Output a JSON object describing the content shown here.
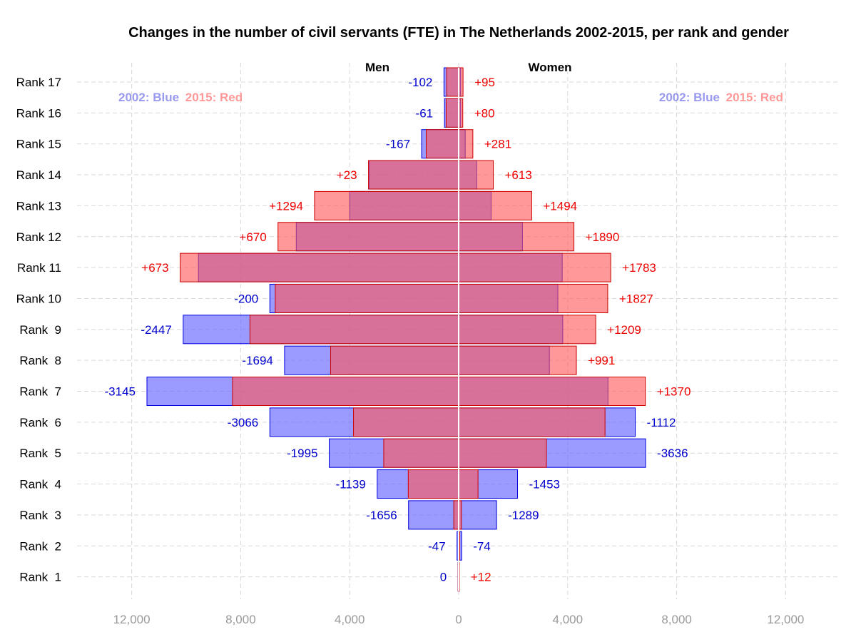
{
  "chart_data": {
    "type": "bar",
    "title": "Changes in the number of civil servants (FTE) in The Netherlands 2002-2015, per rank and gender",
    "men_label": "Men",
    "women_label": "Women",
    "legend": {
      "left": {
        "blue_text": "2002: Blue",
        "red_text": "2015: Red"
      },
      "right": {
        "blue_text": "2002: Blue",
        "red_text": "2015: Red"
      }
    },
    "colors": {
      "blue_fill": "#6666ff",
      "blue_stroke": "#0000dd",
      "red_fill": "#ff5555",
      "red_stroke": "#cc0000",
      "label_blue": "#0000cc",
      "label_red": "#ee0000",
      "legend_blue": "#9999ee",
      "legend_red": "#ff9999"
    },
    "x_ticks": [
      "12,000",
      "8,000",
      "4,000",
      "0",
      "4,000",
      "8,000",
      "12,000"
    ],
    "x_tick_values": [
      -12000,
      -8000,
      -4000,
      0,
      4000,
      8000,
      12000
    ],
    "xlim": [
      -13000,
      13000
    ],
    "categories": [
      "Rank 17",
      "Rank 16",
      "Rank 15",
      "Rank 14",
      "Rank 13",
      "Rank 12",
      "Rank 11",
      "Rank 10",
      "Rank  9",
      "Rank  8",
      "Rank  7",
      "Rank  6",
      "Rank  5",
      "Rank  4",
      "Rank  3",
      "Rank  2",
      "Rank  1"
    ],
    "series": [
      {
        "name": "Men 2002",
        "values": [
          540,
          520,
          1360,
          3290,
          4000,
          5960,
          9550,
          6930,
          10110,
          6390,
          11440,
          6930,
          4750,
          2990,
          1840,
          60,
          20
        ]
      },
      {
        "name": "Men 2015",
        "values": [
          440,
          460,
          1190,
          3310,
          5290,
          6630,
          10220,
          6730,
          7660,
          4700,
          8300,
          3860,
          2750,
          1850,
          180,
          10,
          20
        ]
      },
      {
        "name": "Women 2002",
        "values": [
          70,
          70,
          240,
          660,
          1190,
          2340,
          3800,
          3640,
          3820,
          3330,
          5480,
          6480,
          6860,
          2160,
          1390,
          110,
          10
        ]
      },
      {
        "name": "Women 2015",
        "values": [
          160,
          150,
          520,
          1270,
          2680,
          4230,
          5580,
          5470,
          5030,
          4320,
          6850,
          5370,
          3220,
          710,
          100,
          40,
          20
        ]
      }
    ],
    "men_change_labels": [
      "-102",
      "-61",
      "-167",
      "+23",
      "+1294",
      "+670",
      "+673",
      "-200",
      "-2447",
      "-1694",
      "-3145",
      "-3066",
      "-1995",
      "-1139",
      "-1656",
      "-47",
      "0"
    ],
    "women_change_labels": [
      "+95",
      "+80",
      "+281",
      "+613",
      "+1494",
      "+1890",
      "+1783",
      "+1827",
      "+1209",
      "+991",
      "+1370",
      "-1112",
      "-3636",
      "-1453",
      "-1289",
      "-74",
      "+12"
    ],
    "grid": true
  }
}
